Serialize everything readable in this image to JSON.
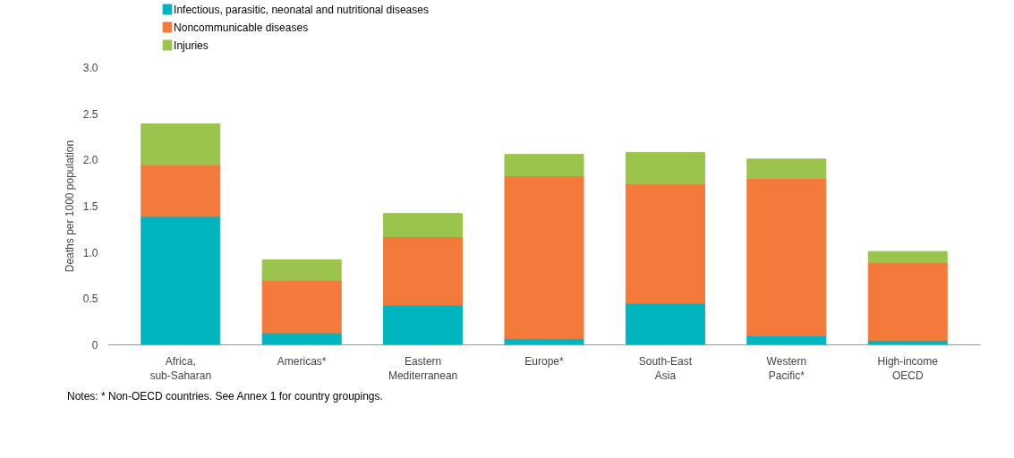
{
  "chart_data": {
    "type": "bar",
    "stacked": true,
    "ylabel": "Deaths per 1000 population",
    "categories": [
      "Africa,\nsub-Saharan",
      "Americas*",
      "Eastern\nMediterranean",
      "Europe*",
      "South-East\nAsia",
      "Western\nPacific*",
      "High-income\nOECD"
    ],
    "series": [
      {
        "name": "Infectious, parasitic, neonatal and nutritional diseases",
        "color": "#00b5c0",
        "values": [
          1.39,
          0.13,
          0.43,
          0.07,
          0.45,
          0.1,
          0.05
        ]
      },
      {
        "name": "Noncommunicable diseases",
        "color": "#f47a3c",
        "values": [
          0.56,
          0.57,
          0.74,
          1.76,
          1.29,
          1.7,
          0.84
        ]
      },
      {
        "name": "Injuries",
        "color": "#9bc44c",
        "values": [
          0.44,
          0.22,
          0.25,
          0.23,
          0.34,
          0.21,
          0.12
        ]
      }
    ],
    "ylim": [
      0,
      3
    ],
    "yticks": [
      0,
      0.5,
      {
        "value": 1,
        "label": "1.0"
      },
      1.5,
      {
        "value": 2,
        "label": "2.0"
      },
      2.5,
      {
        "value": 3,
        "label": "3.0"
      }
    ],
    "grid": false,
    "legend": "top left",
    "annotations": [
      "Notes: * Non-OECD countries. See Annex 1 for country groupings."
    ]
  }
}
